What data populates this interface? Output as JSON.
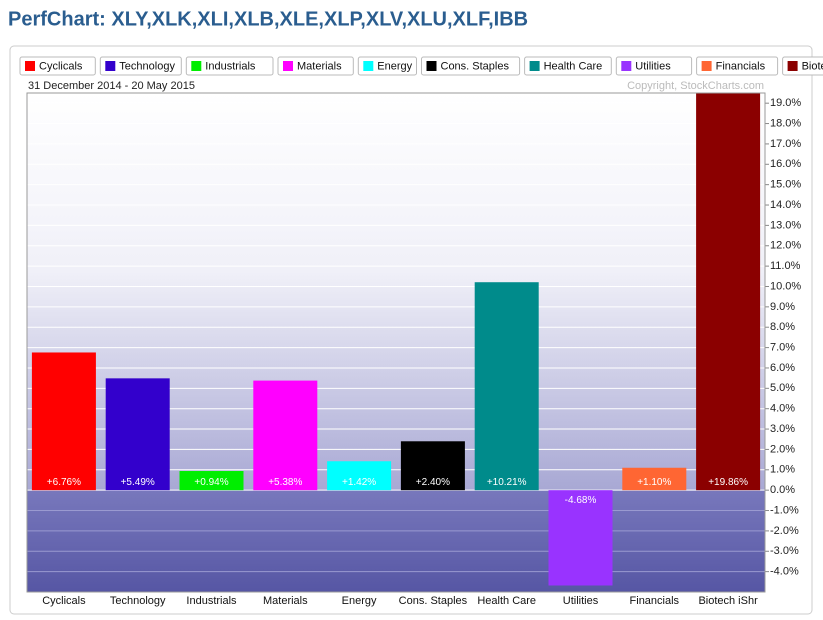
{
  "chart_data": {
    "type": "bar",
    "title": "PerfChart: XLY,XLK,XLI,XLB,XLE,XLP,XLV,XLU,XLF,IBB",
    "subtitle": "31 December 2014 - 20 May 2015",
    "annotation": "Copyright, StockCharts.com",
    "categories": [
      "Cyclicals",
      "Technology",
      "Industrials",
      "Materials",
      "Energy",
      "Cons. Staples",
      "Health Care",
      "Utilities",
      "Financials",
      "Biotech iShr"
    ],
    "values": [
      6.76,
      5.49,
      0.94,
      5.38,
      1.42,
      2.4,
      10.21,
      -4.68,
      1.1,
      19.86
    ],
    "value_labels": [
      "+6.76%",
      "+5.49%",
      "+0.94%",
      "+5.38%",
      "+1.42%",
      "+2.40%",
      "+10.21%",
      "-4.68%",
      "+1.10%",
      "+19.86%"
    ],
    "colors": [
      "#ff0000",
      "#3300cc",
      "#00ee00",
      "#ff00ff",
      "#00ffff",
      "#000000",
      "#008b8b",
      "#9933ff",
      "#ff6633",
      "#8b0000"
    ],
    "ylim": [
      -5.0,
      19.5
    ],
    "yticks": [
      {
        "value": -4,
        "label": "-4.0%"
      },
      {
        "value": -3,
        "label": "-3.0%"
      },
      {
        "value": -2,
        "label": "-2.0%"
      },
      {
        "value": -1,
        "label": "-1.0%"
      },
      {
        "value": 0,
        "label": "0.0%"
      },
      {
        "value": 1,
        "label": "1.0%"
      },
      {
        "value": 2,
        "label": "2.0%"
      },
      {
        "value": 3,
        "label": "3.0%"
      },
      {
        "value": 4,
        "label": "4.0%"
      },
      {
        "value": 5,
        "label": "5.0%"
      },
      {
        "value": 6,
        "label": "6.0%"
      },
      {
        "value": 7,
        "label": "7.0%"
      },
      {
        "value": 8,
        "label": "8.0%"
      },
      {
        "value": 9,
        "label": "9.0%"
      },
      {
        "value": 10,
        "label": "10.0%"
      },
      {
        "value": 11,
        "label": "11.0%"
      },
      {
        "value": 12,
        "label": "12.0%"
      },
      {
        "value": 13,
        "label": "13.0%"
      },
      {
        "value": 14,
        "label": "14.0%"
      },
      {
        "value": 15,
        "label": "15.0%"
      },
      {
        "value": 16,
        "label": "16.0%"
      },
      {
        "value": 17,
        "label": "17.0%"
      },
      {
        "value": 18,
        "label": "18.0%"
      },
      {
        "value": 19,
        "label": "19.0%"
      }
    ],
    "grid": true
  }
}
